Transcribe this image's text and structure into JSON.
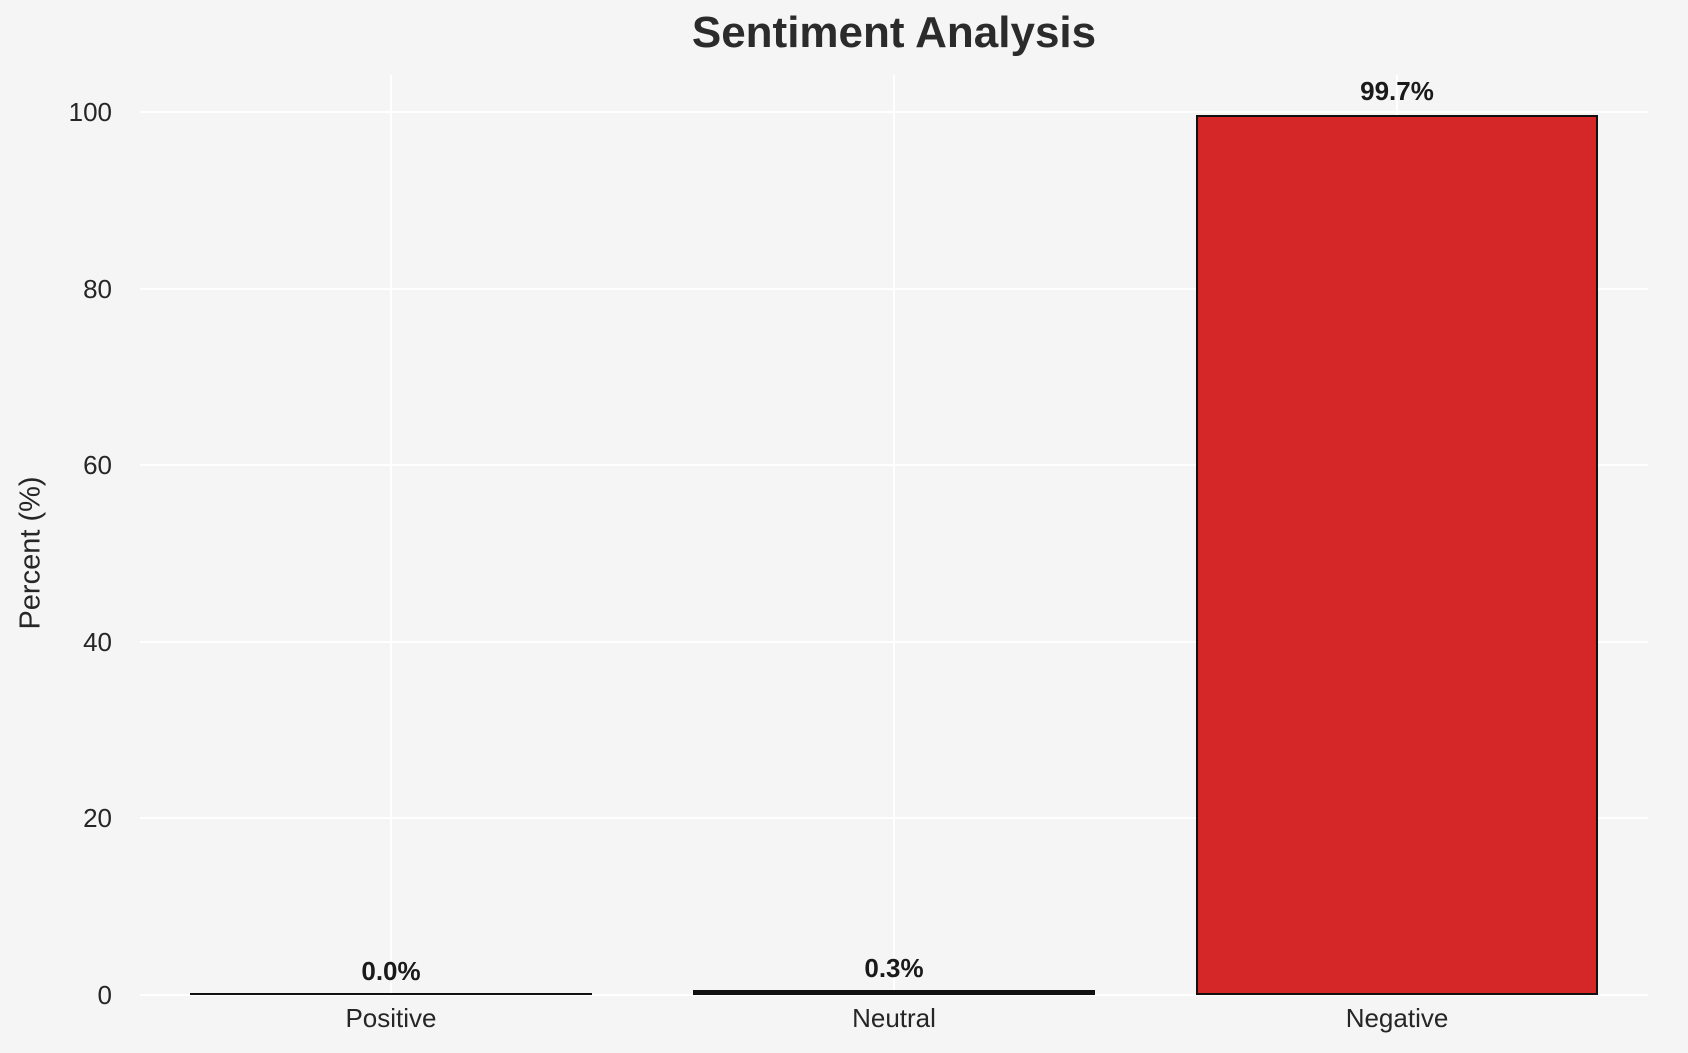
{
  "title": "Sentiment Analysis",
  "colors": {
    "background": "#f5f5f6",
    "gridline": "#ffffff",
    "bar_fill": "#d62728",
    "bar_edge": "#111111",
    "text": "#262626"
  },
  "chart_data": {
    "type": "bar",
    "title": "Sentiment Analysis",
    "xlabel": "",
    "ylabel": "Percent (%)",
    "categories": [
      "Positive",
      "Neutral",
      "Negative"
    ],
    "values": [
      0.0,
      0.3,
      99.7
    ],
    "value_labels": [
      "0.0%",
      "0.3%",
      "99.7%"
    ],
    "yticks": [
      0,
      20,
      40,
      60,
      80,
      100
    ],
    "ylim": [
      0,
      104
    ],
    "grid": true,
    "legend": null,
    "bar_color": "#d62728",
    "bar_edge_color": "#111111"
  }
}
